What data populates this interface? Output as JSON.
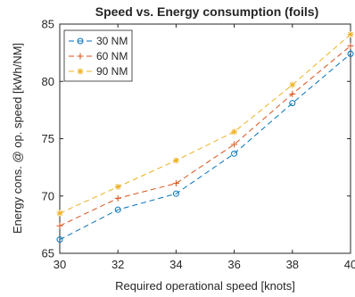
{
  "chart_data": {
    "type": "line",
    "title": "Speed vs. Energy consumption (foils)",
    "xlabel": "Required operational speed [knots]",
    "ylabel": "Energy cons. @ op. speed [kWh/NM]",
    "xlim": [
      30,
      40
    ],
    "ylim": [
      65,
      85
    ],
    "xticks": [
      "30",
      "32",
      "34",
      "36",
      "38",
      "40"
    ],
    "yticks": [
      "65",
      "70",
      "75",
      "80",
      "85"
    ],
    "grid": false,
    "legend_position": "top-left",
    "x": [
      30,
      32,
      34,
      36,
      38,
      40
    ],
    "series": [
      {
        "name": "30 NM",
        "marker": "circle",
        "color": "#0072BD",
        "values": [
          66.2,
          68.8,
          70.2,
          73.7,
          78.1,
          82.4
        ]
      },
      {
        "name": "60 NM",
        "marker": "plus",
        "color": "#D95319",
        "values": [
          67.4,
          69.8,
          71.1,
          74.5,
          78.9,
          83.1
        ]
      },
      {
        "name": "90 NM",
        "marker": "star",
        "color": "#EDB120",
        "values": [
          68.5,
          70.8,
          73.1,
          75.6,
          79.7,
          84.1
        ]
      }
    ]
  }
}
